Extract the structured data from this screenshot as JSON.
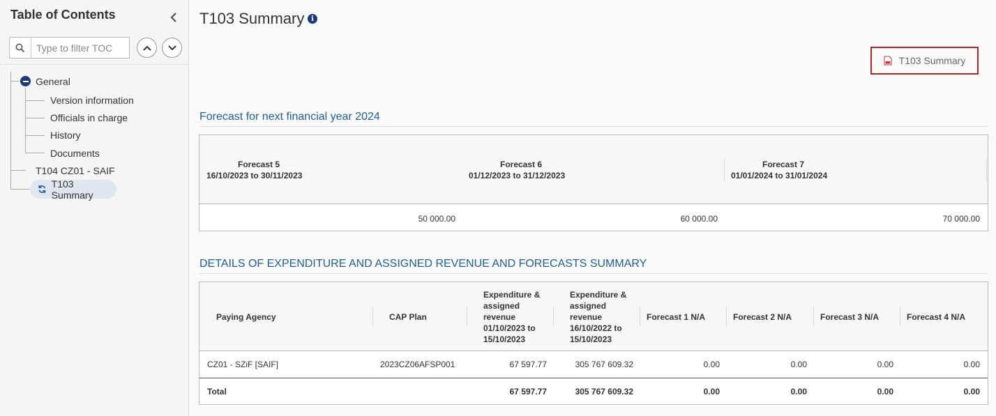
{
  "sidebar": {
    "title": "Table of Contents",
    "filter_placeholder": "Type to filter TOC",
    "tree": {
      "general": "General",
      "children": [
        "Version information",
        "Officials in charge",
        "History",
        "Documents"
      ],
      "t104": "T104 CZ01 - SAIF",
      "t103": "T103 Summary"
    }
  },
  "main": {
    "title": "T103 Summary",
    "pdf_button_label": "T103 Summary",
    "forecast_section": {
      "title": "Forecast for next financial year 2024",
      "columns": [
        {
          "name": "Forecast 5",
          "range": "16/10/2023 to 30/11/2023",
          "value": "50 000.00"
        },
        {
          "name": "Forecast 6",
          "range": "01/12/2023 to 31/12/2023",
          "value": "60 000.00"
        },
        {
          "name": "Forecast 7",
          "range": "01/01/2024 to 31/01/2024",
          "value": "70 000.00"
        }
      ]
    },
    "details_section": {
      "title": "DETAILS OF EXPENDITURE AND ASSIGNED REVENUE AND FORECASTS SUMMARY",
      "headers": [
        "Paying Agency",
        "CAP Plan",
        [
          "Expenditure &",
          "assigned",
          "revenue",
          "01/10/2023 to",
          "15/10/2023"
        ],
        [
          "Expenditure &",
          "assigned",
          "revenue",
          "16/10/2022 to",
          "15/10/2023"
        ],
        "Forecast 1 N/A",
        "Forecast 2 N/A",
        "Forecast 3 N/A",
        "Forecast 4 N/A"
      ],
      "row": [
        "CZ01 - SZiF [SAIF]",
        "2023CZ06AFSP001",
        "67 597.77",
        "305 767 609.32",
        "0.00",
        "0.00",
        "0.00",
        "0.00"
      ],
      "total": [
        "Total",
        "",
        "67 597.77",
        "305 767 609.32",
        "0.00",
        "0.00",
        "0.00",
        "0.00"
      ]
    }
  },
  "colors": {
    "accent_blue": "#1e5fa0",
    "icon_navy": "#1a3a7a",
    "pdf_border": "#b22222"
  }
}
